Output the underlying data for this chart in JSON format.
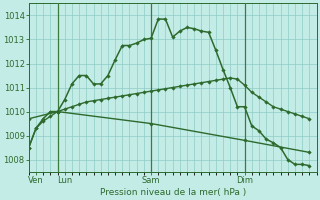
{
  "background_color": "#c4ece6",
  "grid_color": "#8fccc6",
  "line_color": "#2d6a2d",
  "xlabel": "Pression niveau de la mer( hPa )",
  "ylim": [
    1007.5,
    1014.5
  ],
  "yticks": [
    1008,
    1009,
    1010,
    1011,
    1012,
    1013,
    1014
  ],
  "xlim": [
    0,
    40
  ],
  "xtick_positions": [
    1,
    5,
    17,
    30
  ],
  "xtick_labels": [
    "Ven",
    "Lun",
    "Sam",
    "Dim"
  ],
  "vline_positions": [
    4,
    17,
    30
  ],
  "series_jagged_x": [
    0,
    1,
    2,
    3,
    4,
    5,
    6,
    7,
    8,
    9,
    10,
    11,
    12,
    13,
    14,
    15,
    16,
    17,
    18,
    19,
    20,
    21,
    22,
    23,
    24,
    25,
    26,
    27,
    28,
    29,
    30,
    31,
    32,
    33,
    34,
    35,
    36,
    37,
    38,
    39
  ],
  "series_jagged_y": [
    1008.5,
    1009.3,
    1009.7,
    1010.0,
    1010.0,
    1010.5,
    1011.15,
    1011.5,
    1011.5,
    1011.15,
    1011.15,
    1011.5,
    1012.15,
    1012.75,
    1012.75,
    1012.85,
    1013.0,
    1013.05,
    1013.85,
    1013.85,
    1013.1,
    1013.35,
    1013.5,
    1013.45,
    1013.35,
    1013.3,
    1012.55,
    1011.75,
    1011.0,
    1010.2,
    1010.2,
    1009.4,
    1009.2,
    1008.85,
    1008.7,
    1008.5,
    1008.0,
    1007.8,
    1007.8,
    1007.75
  ],
  "series_smooth_x": [
    0,
    1,
    2,
    3,
    4,
    5,
    6,
    7,
    8,
    9,
    10,
    11,
    12,
    13,
    14,
    15,
    16,
    17,
    18,
    19,
    20,
    21,
    22,
    23,
    24,
    25,
    26,
    27,
    28,
    29,
    30,
    31,
    32,
    33,
    34,
    35,
    36,
    37,
    38,
    39
  ],
  "series_smooth_y": [
    1008.5,
    1009.3,
    1009.6,
    1009.8,
    1010.0,
    1010.1,
    1010.2,
    1010.3,
    1010.4,
    1010.45,
    1010.5,
    1010.55,
    1010.6,
    1010.65,
    1010.7,
    1010.75,
    1010.8,
    1010.85,
    1010.9,
    1010.95,
    1011.0,
    1011.05,
    1011.1,
    1011.15,
    1011.2,
    1011.25,
    1011.3,
    1011.35,
    1011.4,
    1011.35,
    1011.1,
    1010.8,
    1010.6,
    1010.4,
    1010.2,
    1010.1,
    1010.0,
    1009.9,
    1009.8,
    1009.7
  ],
  "series_diag_x": [
    0,
    4,
    17,
    30,
    39
  ],
  "series_diag_y": [
    1009.7,
    1010.0,
    1009.5,
    1008.8,
    1008.3
  ]
}
